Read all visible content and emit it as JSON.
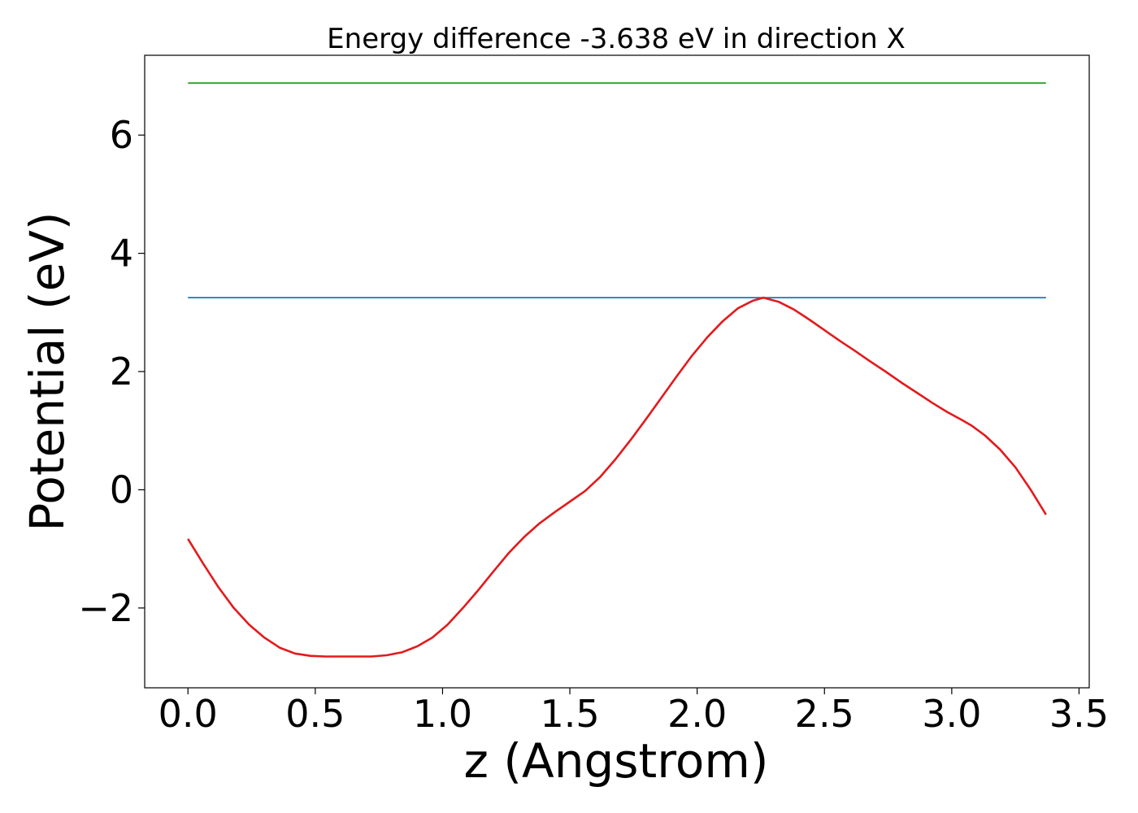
{
  "chart_data": {
    "type": "line",
    "title": "Energy difference -3.638 eV in direction X",
    "xlabel": "z (Angstrom)",
    "ylabel": "Potential (eV)",
    "xlim": [
      -0.17,
      3.54
    ],
    "ylim": [
      -3.35,
      7.35
    ],
    "xticks": [
      0.0,
      0.5,
      1.0,
      1.5,
      2.0,
      2.5,
      3.0,
      3.5
    ],
    "xtick_labels": [
      "0.0",
      "0.5",
      "1.0",
      "1.5",
      "2.0",
      "2.5",
      "3.0",
      "3.5"
    ],
    "yticks": [
      -2,
      0,
      2,
      4,
      6
    ],
    "ytick_labels": [
      "−2",
      "0",
      "2",
      "4",
      "6"
    ],
    "grid": false,
    "series": [
      {
        "color": "#2ca02c",
        "x": [
          0.0,
          3.37
        ],
        "y": [
          6.88,
          6.88
        ]
      },
      {
        "color": "#1f77b4",
        "x": [
          0.0,
          3.37
        ],
        "y": [
          3.25,
          3.25
        ]
      },
      {
        "color": "#e31a1c",
        "x": [
          0.0,
          0.06,
          0.12,
          0.18,
          0.24,
          0.3,
          0.36,
          0.42,
          0.48,
          0.54,
          0.6,
          0.66,
          0.72,
          0.78,
          0.84,
          0.9,
          0.96,
          1.02,
          1.08,
          1.14,
          1.2,
          1.26,
          1.32,
          1.38,
          1.44,
          1.5,
          1.56,
          1.62,
          1.68,
          1.74,
          1.8,
          1.86,
          1.92,
          1.98,
          2.04,
          2.1,
          2.16,
          2.22,
          2.26,
          2.32,
          2.38,
          2.44,
          2.5,
          2.56,
          2.62,
          2.68,
          2.74,
          2.8,
          2.86,
          2.92,
          2.98,
          3.04,
          3.08,
          3.13,
          3.19,
          3.25,
          3.31,
          3.37
        ],
        "y": [
          -0.83,
          -1.25,
          -1.65,
          -2.0,
          -2.28,
          -2.5,
          -2.67,
          -2.77,
          -2.81,
          -2.82,
          -2.82,
          -2.82,
          -2.82,
          -2.8,
          -2.75,
          -2.65,
          -2.5,
          -2.28,
          -2.0,
          -1.7,
          -1.38,
          -1.07,
          -0.8,
          -0.57,
          -0.38,
          -0.2,
          -0.02,
          0.22,
          0.52,
          0.85,
          1.2,
          1.56,
          1.92,
          2.27,
          2.58,
          2.85,
          3.07,
          3.2,
          3.25,
          3.18,
          3.05,
          2.88,
          2.7,
          2.52,
          2.35,
          2.17,
          2.0,
          1.82,
          1.65,
          1.48,
          1.32,
          1.18,
          1.08,
          0.92,
          0.68,
          0.38,
          0.0,
          -0.42
        ]
      }
    ]
  }
}
